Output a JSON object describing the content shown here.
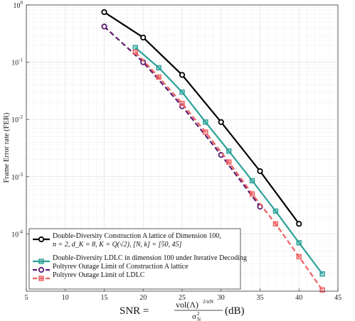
{
  "chart_data": {
    "type": "line",
    "title": "",
    "xlabel": {
      "prefix": "SNR = ",
      "frac_num": "vol(Λ)",
      "frac_num_exp": "2/nN",
      "frac_den": "σ",
      "frac_den_sup": "2",
      "frac_den_sub": "N",
      "suffix": "(dB)"
    },
    "ylabel": "Frame Error rate (FER)",
    "xlim": [
      5,
      45
    ],
    "ylim": [
      1e-05,
      1
    ],
    "yscale": "log",
    "grid": true,
    "legend_position": "bottom-left",
    "x_ticks": [
      "5",
      "10",
      "15",
      "20",
      "25",
      "30",
      "35",
      "40",
      "45"
    ],
    "y_ticks": [
      {
        "base": "10",
        "exp": "0"
      },
      {
        "base": "10",
        "exp": "-1"
      },
      {
        "base": "10",
        "exp": "-2"
      },
      {
        "base": "10",
        "exp": "-3"
      },
      {
        "base": "10",
        "exp": "-4"
      }
    ],
    "series": [
      {
        "name": "Double-Diversity Construction A lattice of Dimension 100,",
        "name_line2": "n = 2, d_K = 8, K = Q(√2), [N, k] = [50, 45]",
        "color": "#000000",
        "marker": "circle",
        "dash": "solid",
        "x": [
          15,
          20,
          25,
          30,
          35,
          40
        ],
        "y": [
          0.75,
          0.27,
          0.06,
          0.009,
          0.00125,
          0.00015
        ]
      },
      {
        "name": "Double-Diversity LDLC in dimension 100 under Iterative Decoding",
        "color": "#2aa198",
        "marker": "square",
        "dash": "solid",
        "x": [
          19,
          22,
          25,
          28,
          31,
          34,
          37,
          40,
          43
        ],
        "y": [
          0.18,
          0.08,
          0.03,
          0.009,
          0.0028,
          0.00085,
          0.00025,
          7e-05,
          2e-05
        ]
      },
      {
        "name": "Poltyrev Outage Limit of Construction A lattice",
        "color": "#5b1a6e",
        "marker": "circle",
        "dash": "dashed",
        "x": [
          15,
          20,
          25,
          30,
          35
        ],
        "y": [
          0.42,
          0.1,
          0.017,
          0.0024,
          0.0003
        ]
      },
      {
        "name": "Poltyrev Outage Limit of LDLC",
        "color": "#f06060",
        "marker": "square",
        "dash": "dashed",
        "x": [
          19,
          22,
          25,
          28,
          31,
          34,
          37,
          40,
          43
        ],
        "y": [
          0.15,
          0.055,
          0.019,
          0.006,
          0.0018,
          0.0005,
          0.00015,
          4e-05,
          1.05e-05
        ]
      }
    ]
  }
}
